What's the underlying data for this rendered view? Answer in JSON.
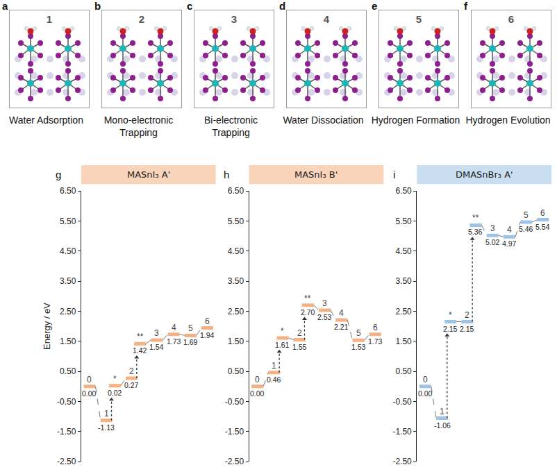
{
  "top_row": {
    "panels": [
      {
        "letter": "a",
        "number": "1",
        "caption": "Water Adsorption"
      },
      {
        "letter": "b",
        "number": "2",
        "caption": "Mono-electronic Trapping"
      },
      {
        "letter": "c",
        "number": "3",
        "caption": "Bi-electronic Trapping"
      },
      {
        "letter": "d",
        "number": "4",
        "caption": "Water Dissociation"
      },
      {
        "letter": "e",
        "number": "5",
        "caption": "Hydrogen Formation"
      },
      {
        "letter": "f",
        "number": "6",
        "caption": "Hydrogen Evolution"
      }
    ]
  },
  "chart_data": [
    {
      "type": "levels",
      "letter": "g",
      "title": "MASnI₃ A'",
      "color": "#f4b183",
      "categories": [
        "0",
        "1",
        "*",
        "2",
        "**",
        "3",
        "4",
        "5",
        "6"
      ],
      "values": [
        0,
        -1.13,
        0.02,
        0.27,
        1.42,
        1.54,
        1.73,
        1.69,
        1.94
      ],
      "value_labels": [
        "0.00",
        "-1.13",
        "0.02",
        "0.27",
        "1.42",
        "1.54",
        "1.73",
        "1.69",
        "1.94"
      ],
      "transitions": [
        [
          "1",
          "*"
        ],
        [
          "2",
          "**"
        ]
      ],
      "ylabel": "Energy / eV",
      "ylim": [
        -2.5,
        6.5
      ],
      "yticks": [
        {
          "value": -2.5,
          "label": "-2.50"
        },
        {
          "value": -1.5,
          "label": "-1.50"
        },
        {
          "value": -0.5,
          "label": "-0.50"
        },
        {
          "value": 0.5,
          "label": "0.50"
        },
        {
          "value": 1.5,
          "label": "1.50"
        },
        {
          "value": 2.5,
          "label": "2.50"
        },
        {
          "value": 3.5,
          "label": "3.50"
        },
        {
          "value": 4.5,
          "label": "4.50"
        },
        {
          "value": 5.5,
          "label": "5.50"
        },
        {
          "value": 6.5,
          "label": "6.50"
        }
      ],
      "grid": false,
      "data_labels": true,
      "tick_labels": "y"
    },
    {
      "type": "levels",
      "letter": "h",
      "title": "MASnI₃ B'",
      "color": "#f4b183",
      "categories": [
        "0",
        "1",
        "*",
        "2",
        "**",
        "3",
        "4",
        "5",
        "6"
      ],
      "values": [
        0,
        0.46,
        1.61,
        1.55,
        2.7,
        2.53,
        2.21,
        1.53,
        1.73
      ],
      "value_labels": [
        "0.00",
        "0.46",
        "1.61",
        "1.55",
        "2.70",
        "2.53",
        "2.21",
        "1.53",
        "1.73"
      ],
      "transitions": [
        [
          "1",
          "*"
        ],
        [
          "2",
          "**"
        ]
      ],
      "ylim": [
        -2.5,
        6.5
      ],
      "yticks": [
        {
          "value": -2.5,
          "label": "-2.50"
        },
        {
          "value": -1.5,
          "label": "-1.50"
        },
        {
          "value": -0.5,
          "label": "-0.50"
        },
        {
          "value": 0.5,
          "label": "0.50"
        },
        {
          "value": 1.5,
          "label": "1.50"
        },
        {
          "value": 2.5,
          "label": "2.50"
        },
        {
          "value": 3.5,
          "label": "3.50"
        },
        {
          "value": 4.5,
          "label": "4.50"
        },
        {
          "value": 5.5,
          "label": "5.50"
        },
        {
          "value": 6.5,
          "label": "6.50"
        }
      ],
      "grid": false,
      "data_labels": true,
      "tick_labels": "y"
    },
    {
      "type": "levels",
      "letter": "i",
      "title": "DMASnBr₃ A'",
      "color": "#9dc3e6",
      "categories": [
        "0",
        "1",
        "*",
        "2",
        "**",
        "3",
        "4",
        "5",
        "6"
      ],
      "values": [
        0,
        -1.06,
        2.15,
        2.15,
        5.36,
        5.02,
        4.97,
        5.46,
        5.54
      ],
      "value_labels": [
        "0.00",
        "-1.06",
        "2.15",
        "2.15",
        "5.36",
        "5.02",
        "4.97",
        "5.46",
        "5.54"
      ],
      "transitions": [
        [
          "1",
          "*"
        ],
        [
          "2",
          "**"
        ]
      ],
      "ylim": [
        -2.5,
        6.5
      ],
      "yticks": [
        {
          "value": -2.5,
          "label": "-2.50"
        },
        {
          "value": -1.5,
          "label": "-1.50"
        },
        {
          "value": -0.5,
          "label": "-0.50"
        },
        {
          "value": 0.5,
          "label": "0.50"
        },
        {
          "value": 1.5,
          "label": "1.50"
        },
        {
          "value": 2.5,
          "label": "2.50"
        },
        {
          "value": 3.5,
          "label": "3.50"
        },
        {
          "value": 4.5,
          "label": "4.50"
        },
        {
          "value": 5.5,
          "label": "5.50"
        },
        {
          "value": 6.5,
          "label": "6.50"
        }
      ],
      "grid": false,
      "data_labels": true,
      "tick_labels": "y"
    }
  ]
}
